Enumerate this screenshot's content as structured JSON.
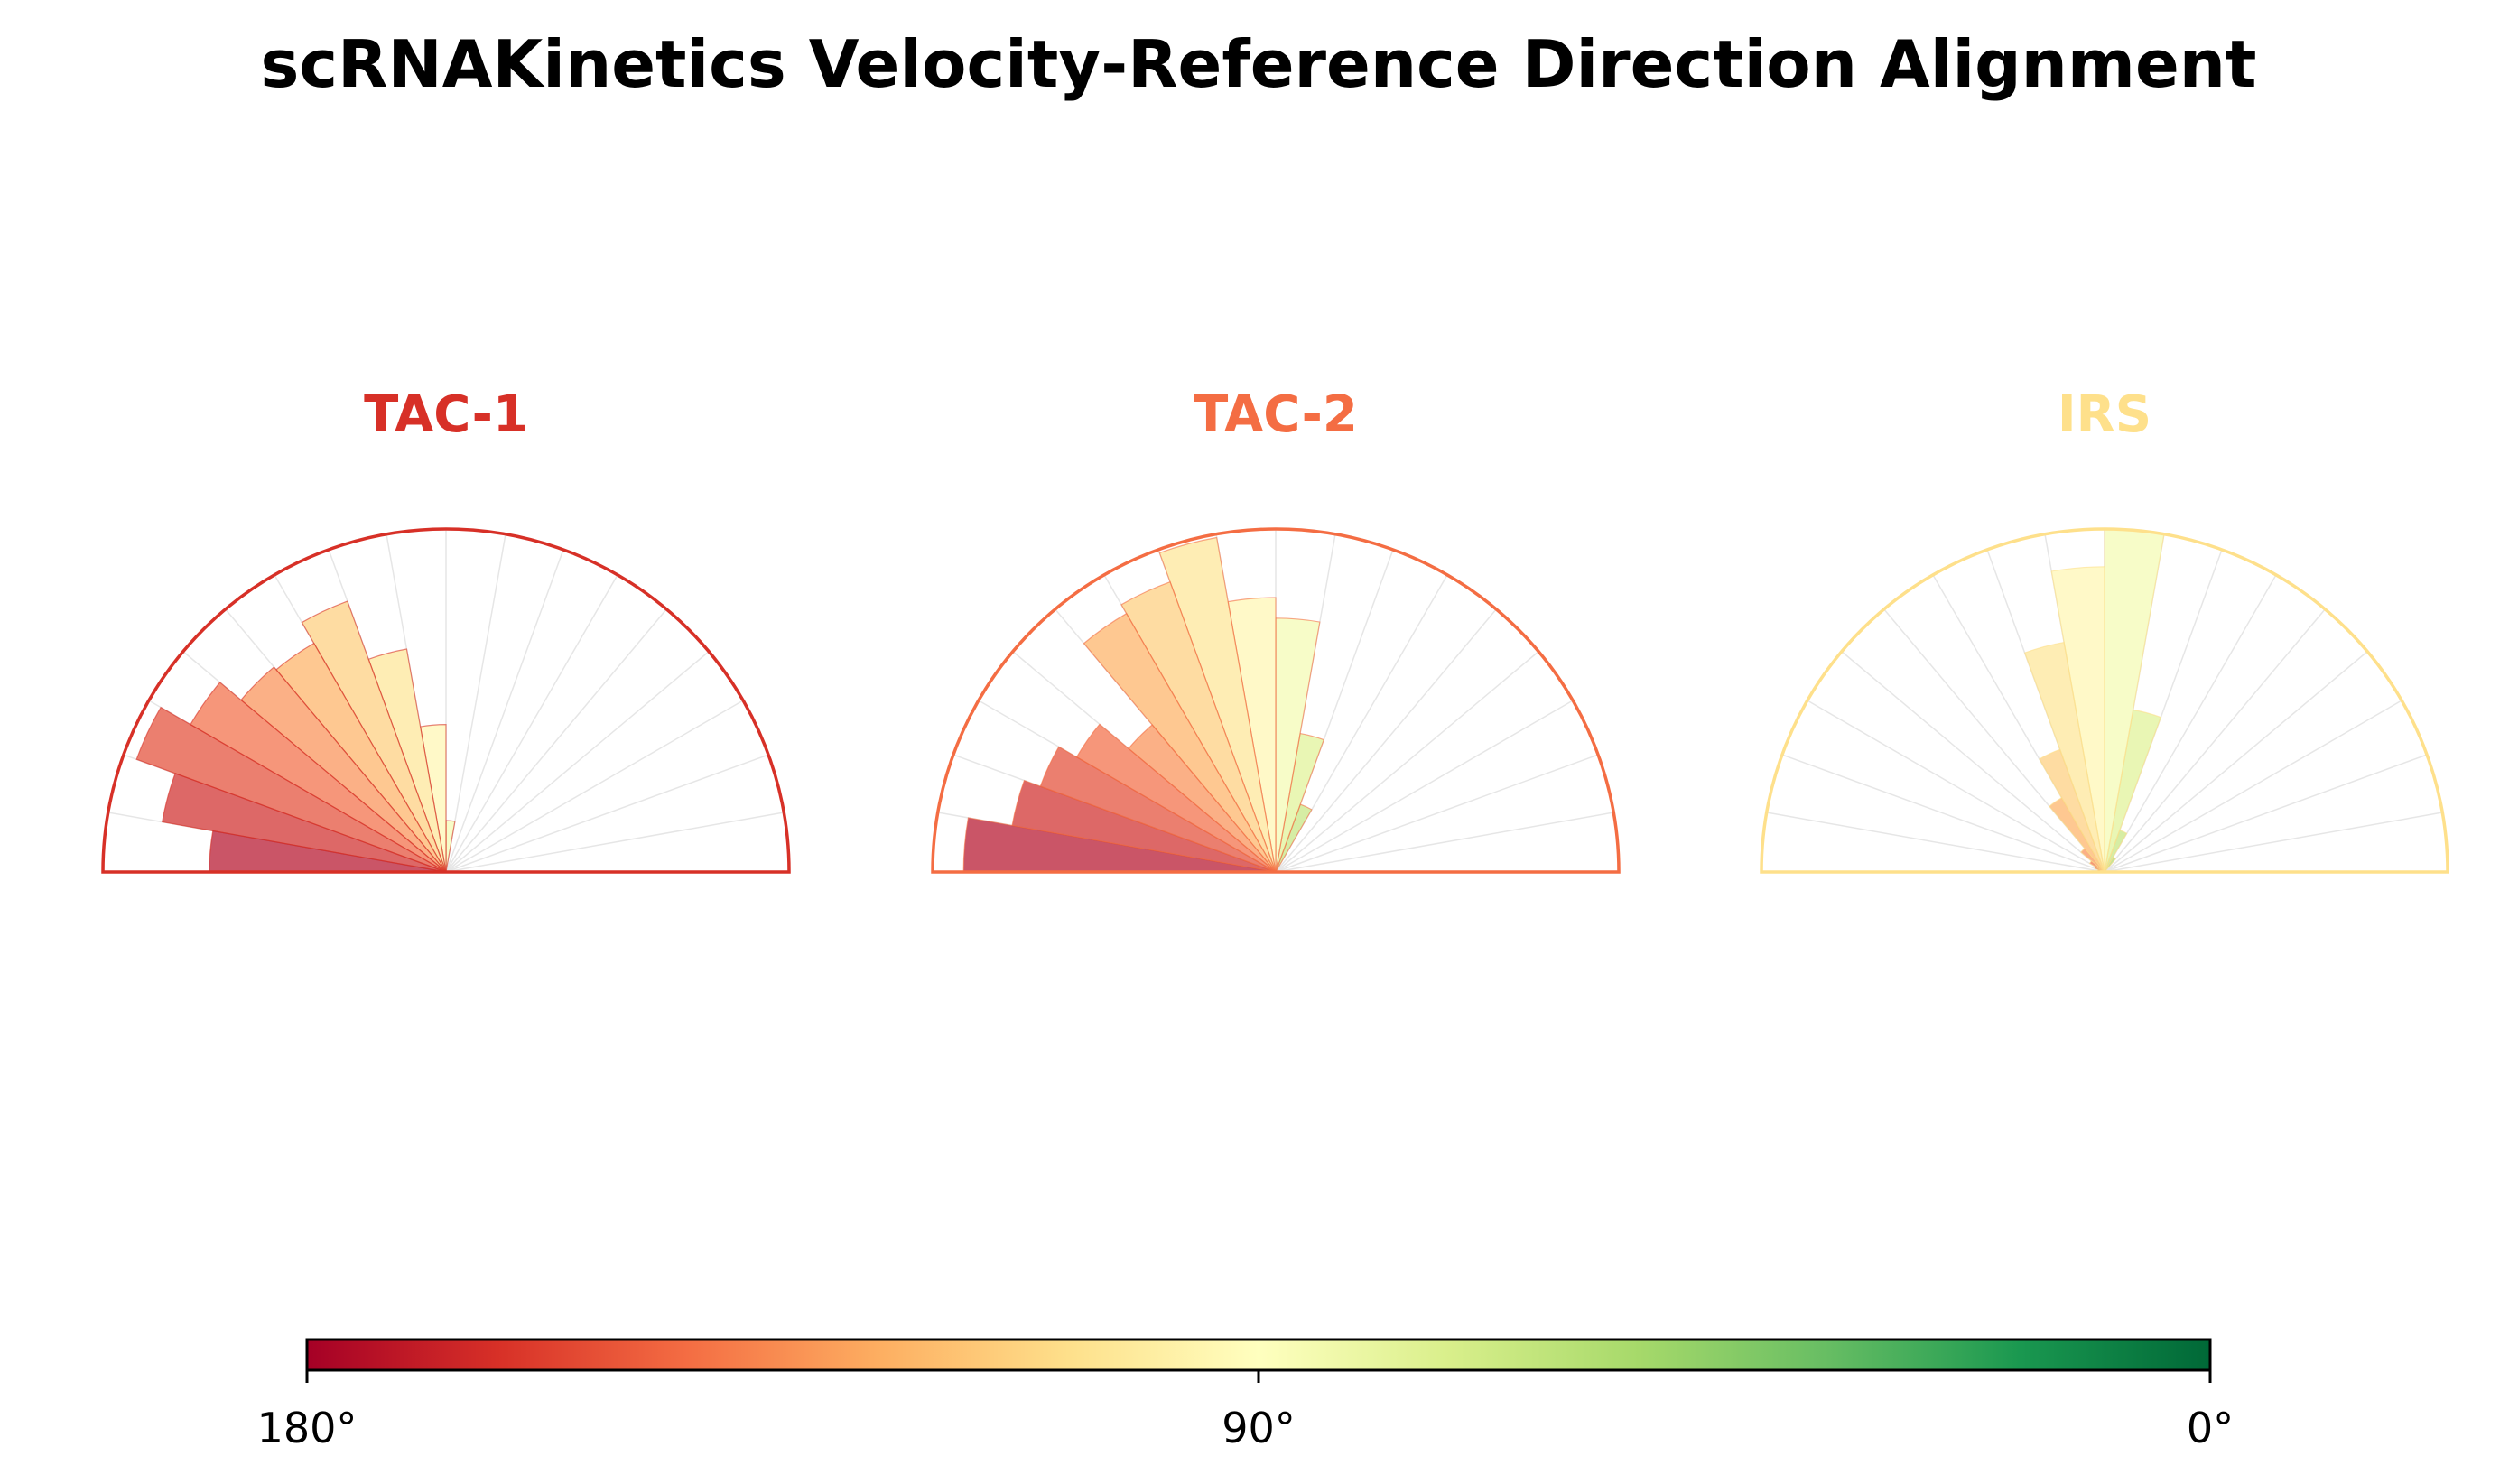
{
  "chart_data": {
    "type": "rose",
    "title": "scRNAKinetics Velocity-Reference Direction Alignment",
    "angle_unit": "degrees",
    "angle_range": [
      0,
      180
    ],
    "bin_width": 10,
    "bin_centers": [
      5,
      15,
      25,
      35,
      45,
      55,
      65,
      75,
      85,
      95,
      105,
      115,
      125,
      135,
      145,
      155,
      165,
      175
    ],
    "radial_max": 1.0,
    "panels": [
      {
        "name": "TAC-1",
        "title_color": "#d73027",
        "edge_color": "#d73027",
        "values": [
          0.0,
          0.0,
          0.0,
          0.0,
          0.0,
          0.0,
          0.0,
          0.0,
          0.15,
          0.43,
          0.66,
          0.84,
          0.77,
          0.78,
          0.86,
          0.96,
          0.84,
          0.69
        ]
      },
      {
        "name": "TAC-2",
        "title_color": "#f46d43",
        "edge_color": "#f46d43",
        "values": [
          0.0,
          0.0,
          0.0,
          0.0,
          0.0,
          0.0,
          0.21,
          0.41,
          0.74,
          0.8,
          0.99,
          0.9,
          0.87,
          0.56,
          0.67,
          0.73,
          0.78,
          0.91
        ]
      },
      {
        "name": "IRS",
        "title_color": "#fee08b",
        "edge_color": "#fee08b",
        "values": [
          0.0,
          0.0,
          0.0,
          0.0,
          0.0,
          0.05,
          0.13,
          0.48,
          1.0,
          0.89,
          0.68,
          0.38,
          0.25,
          0.09,
          0.05,
          0.03,
          0.02,
          0.0
        ]
      }
    ],
    "colorbar": {
      "colormap": "RdYlGn",
      "range": [
        180,
        0
      ],
      "tick_labels": [
        "180°",
        "90°",
        "0°"
      ],
      "tick_values": [
        180,
        90,
        0
      ]
    }
  }
}
